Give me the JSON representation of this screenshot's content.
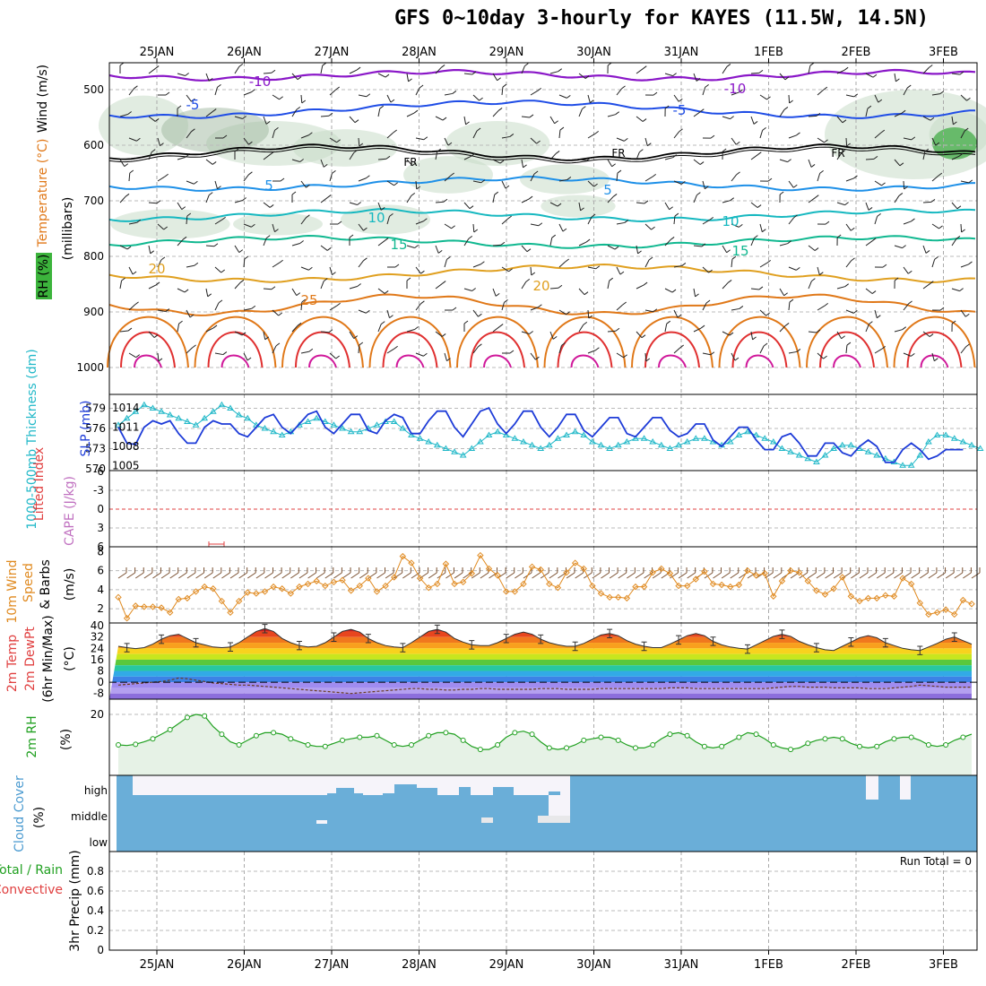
{
  "title": "GFS 0~10day 3-hourly for KAYES (11.5W, 14.5N)",
  "dates": [
    "25JAN",
    "26JAN",
    "27JAN",
    "28JAN",
    "29JAN",
    "30JAN",
    "31JAN",
    "1FEB",
    "2FEB",
    "3FEB"
  ],
  "panels": {
    "upper": {
      "ylabel_wind": "Wind (m/s)",
      "ylabel_temp": "Temperature (°C)",
      "ylabel_rh": "RH (%)",
      "ylabel_mb": "(millibars)",
      "ticks": [
        "500",
        "600",
        "700",
        "800",
        "900",
        "1000"
      ],
      "freezing_label": "FR",
      "colors": {
        "m10": "#8a17c8",
        "m5": "#1f4de6",
        "zero": "#000000",
        "p5": "#1e90e8",
        "p10": "#16b8c0",
        "p15": "#10b890",
        "p20": "#e0a020",
        "p25": "#e07818",
        "p30": "#e03030",
        "rh": "#c8dcc8"
      }
    },
    "thickness": {
      "ylabel_left": "1000-500mb Thickness (dm)",
      "ylabel_right": "SLP (mb)",
      "ticks_left": [
        "579",
        "576",
        "573",
        "570"
      ],
      "ticks_right": [
        "1014",
        "1011",
        "1008",
        "1005"
      ],
      "thickness_color": "#20b8c8",
      "slp_color": "#1e3cd8"
    },
    "cape": {
      "ylabel_left": "Lifted Index",
      "ylabel_right": "CAPE (J/kg)",
      "ticks": [
        "-6",
        "-3",
        "0",
        "3",
        "6"
      ]
    },
    "wind10m": {
      "ylabel_1": "10m Wind",
      "ylabel_2": "Speed",
      "ylabel_3": "& Barbs",
      "ylabel_4": "(m/s)",
      "ticks": [
        "8",
        "6",
        "4",
        "2"
      ],
      "color": "#e08a20"
    },
    "temp2m": {
      "ylabel_1": "2m Temp",
      "ylabel_2": "2m DewPt",
      "ylabel_3": "(6hr Min/Max)",
      "ylabel_4": "(°C)",
      "ticks": [
        "40",
        "32",
        "24",
        "16",
        "8",
        "0",
        "-8"
      ]
    },
    "rh2m": {
      "ylabel_1": "2m RH",
      "ylabel_2": "(%)",
      "ticks": [
        "20"
      ],
      "color": "#20a020"
    },
    "cloud": {
      "ylabel_1": "Cloud Cover",
      "ylabel_2": "(%)",
      "ticks": [
        "high",
        "middle",
        "low"
      ],
      "color": "#6aaed8"
    },
    "precip": {
      "ylabel_1": "Total / Rain",
      "ylabel_2": "Convective",
      "ylabel_3": "3hr Precip (mm)",
      "ticks": [
        "0.8",
        "0.6",
        "0.4",
        "0.2",
        "0"
      ],
      "run_total": "Run Total = 0"
    }
  },
  "chart_data": [
    {
      "type": "line",
      "title": "1000-500mb Thickness (dm) and SLP (mb)",
      "x_step_hours": 3,
      "series": [
        {
          "name": "1000-500mb Thickness (dm)",
          "axis": "left",
          "range": [
            570,
            580
          ],
          "values": [
            576.5,
            577.5,
            578.5,
            579.5,
            579,
            578.5,
            578,
            577.5,
            577,
            576.5,
            577.5,
            578.5,
            579.5,
            579,
            578,
            577.5,
            576.5,
            576,
            575.5,
            575,
            575.5,
            576.5,
            577,
            577.5,
            577,
            576.5,
            576,
            575.5,
            575.5,
            576,
            576.5,
            577,
            577,
            576,
            575,
            574.5,
            574,
            573.5,
            573,
            572.5,
            572,
            573,
            574,
            575,
            575.5,
            575,
            574.5,
            574,
            573.5,
            573,
            573.5,
            574.5,
            575,
            575.5,
            575,
            574,
            573.5,
            573,
            573.5,
            574,
            574.5,
            574.5,
            574,
            573.5,
            573,
            573.5,
            574,
            574.5,
            574.5,
            574,
            573.5,
            574,
            575,
            575.5,
            575,
            574.5,
            574,
            573,
            572.5,
            572,
            571.5,
            571,
            572,
            573,
            573.5,
            573.5,
            573,
            572.5,
            572,
            571.5,
            571,
            570.5,
            570.5,
            572,
            574,
            575,
            575,
            574.5,
            574,
            573.5,
            573
          ]
        },
        {
          "name": "SLP (mb)",
          "axis": "right",
          "range": [
            1004.5,
            1015
          ],
          "values": [
            1011,
            1008.5,
            1008.3,
            1011,
            1012,
            1011.5,
            1012,
            1010,
            1008.5,
            1008.5,
            1011,
            1012,
            1011.5,
            1011.5,
            1010,
            1009.5,
            1011,
            1012.5,
            1013,
            1011,
            1010,
            1011.5,
            1013,
            1013.5,
            1011,
            1010,
            1011.5,
            1013,
            1013,
            1010.5,
            1010,
            1012,
            1013,
            1012.5,
            1010,
            1010,
            1012,
            1013.5,
            1013.5,
            1011,
            1009.5,
            1011.5,
            1013.5,
            1014,
            1011.5,
            1010,
            1011.5,
            1013.5,
            1013.5,
            1011,
            1009.5,
            1011,
            1013,
            1013,
            1010.5,
            1009.5,
            1011,
            1012.5,
            1012.5,
            1010,
            1009.5,
            1011,
            1012.5,
            1012.5,
            1010.5,
            1009.5,
            1010,
            1011.5,
            1011.5,
            1009,
            1008,
            1009.5,
            1011,
            1011,
            1009,
            1007.5,
            1007.5,
            1009.5,
            1010,
            1008.5,
            1006.5,
            1006.5,
            1008.5,
            1008.5,
            1007,
            1006.5,
            1008,
            1009,
            1008,
            1005.5,
            1005.5,
            1007.5,
            1008.5,
            1007.5,
            1006,
            1006.5,
            1007.5,
            1007.5,
            1007.5
          ]
        }
      ]
    },
    {
      "type": "line",
      "title": "10m Wind Speed (m/s)",
      "ylim": [
        0.5,
        8.5
      ],
      "series": [
        {
          "name": "10m Wind Speed",
          "values": [
            3.2,
            1,
            2.3,
            2.2,
            2.2,
            2.1,
            1.6,
            3,
            3.1,
            3.8,
            4.3,
            4.1,
            2.8,
            1.6,
            2.8,
            3.7,
            3.6,
            3.8,
            4.3,
            4.1,
            3.6,
            4.3,
            4.6,
            4.9,
            4.4,
            4.8,
            5,
            3.9,
            4.4,
            5.2,
            3.8,
            4.4,
            5.3,
            7.5,
            6.8,
            5.2,
            4.2,
            4.6,
            6.7,
            4.6,
            4.8,
            5.7,
            7.6,
            6.2,
            5.5,
            3.8,
            3.8,
            4.6,
            6.4,
            6.1,
            4.6,
            4.2,
            5.8,
            6.8,
            6.2,
            4.4,
            3.6,
            3.2,
            3.2,
            3.1,
            4.3,
            4.3,
            5.8,
            6.2,
            5.7,
            4.4,
            4.4,
            5.1,
            5.9,
            4.6,
            4.5,
            4.3,
            4.5,
            6,
            5.5,
            5.7,
            3.3,
            4.9,
            6,
            5.8,
            4.9,
            3.9,
            3.5,
            4.1,
            5.3,
            3.3,
            2.8,
            3.1,
            3.1,
            3.4,
            3.3,
            5.2,
            4.6,
            2.6,
            1.4,
            1.6,
            1.9,
            1.4,
            2.9,
            2.5
          ]
        }
      ]
    },
    {
      "type": "area",
      "title": "2m Temp (°C)",
      "ylim": [
        -12,
        42
      ],
      "series": [
        {
          "name": "2m Temp",
          "values": [
            25.5,
            24.5,
            23.8,
            24.5,
            27,
            30.5,
            33,
            34,
            31,
            28,
            26.5,
            25,
            24.5,
            25,
            28,
            32,
            36,
            38,
            36,
            31,
            28,
            26,
            25,
            25.5,
            28,
            32,
            36,
            37.5,
            35.5,
            31,
            28,
            26,
            25,
            24.5,
            28,
            32,
            36,
            37.5,
            35.5,
            31,
            28.5,
            26.5,
            26,
            26,
            28,
            31,
            34,
            35.5,
            34,
            30.5,
            28,
            26.5,
            25.5,
            25.5,
            27.5,
            30.5,
            33.5,
            34.5,
            33,
            29.5,
            27,
            25.5,
            24.5,
            24.5,
            27,
            30,
            33,
            34.5,
            33,
            29,
            26.5,
            25,
            24,
            23.5,
            26.5,
            29.5,
            32.5,
            34,
            32.5,
            29,
            26.5,
            24.5,
            23,
            22.5,
            25.5,
            28.5,
            31.5,
            33,
            31.5,
            28,
            26,
            24,
            23,
            22.5,
            25,
            27.5,
            30.5,
            32,
            29.5,
            27
          ]
        },
        {
          "name": "2m DewPt",
          "values": [
            -2,
            -1.5,
            -1,
            -0.5,
            0,
            0.5,
            1.5,
            3,
            2.5,
            1.5,
            0.5,
            -0.5,
            -1,
            -1.5,
            -2,
            -2,
            -2.5,
            -3,
            -3.5,
            -4,
            -4.5,
            -5,
            -5.5,
            -6,
            -6.5,
            -7,
            -7.5,
            -8,
            -7.5,
            -7,
            -6.5,
            -6,
            -5.5,
            -5,
            -4.5,
            -4.5,
            -5,
            -5,
            -5.5,
            -5.5,
            -5,
            -5,
            -4.5,
            -4.5,
            -5,
            -5,
            -5,
            -5,
            -5,
            -4.5,
            -4.5,
            -4.5,
            -5,
            -5,
            -5,
            -5,
            -4.5,
            -4.5,
            -4.5,
            -4.5,
            -4.5,
            -4.5,
            -4.5,
            -4.5,
            -4,
            -4,
            -4,
            -4.5,
            -4.5,
            -4.5,
            -4.5,
            -4.5,
            -4.5,
            -4.5,
            -4.5,
            -4.5,
            -4,
            -3.5,
            -3,
            -3,
            -3.5,
            -3.5,
            -3.5,
            -4,
            -4,
            -4,
            -4,
            -4.5,
            -4.5,
            -4.5,
            -4,
            -3.5,
            -3,
            -2,
            -2.5,
            -3,
            -3.5,
            -3.5,
            -3.5,
            -3.5
          ]
        }
      ]
    },
    {
      "type": "line",
      "title": "2m RH (%)",
      "ylim": [
        0,
        25
      ],
      "series": [
        {
          "name": "2m RH",
          "values": [
            10,
            9.8,
            10.2,
            11,
            12,
            13.5,
            15,
            17,
            19,
            20,
            19.5,
            16,
            13.5,
            11,
            10,
            11.5,
            13,
            14,
            14,
            13.5,
            12,
            11,
            10,
            9.5,
            9.5,
            10.5,
            11.5,
            12,
            12.5,
            12.5,
            13,
            11.5,
            10,
            9.5,
            10,
            11.5,
            13,
            14,
            14,
            13.5,
            11.5,
            9.5,
            8.5,
            8.5,
            10,
            12.5,
            14,
            14.5,
            13.5,
            11,
            9,
            8.5,
            9,
            10,
            11.5,
            12,
            12.5,
            12.5,
            11.5,
            10,
            9,
            9,
            10,
            12,
            13.5,
            14,
            13,
            11,
            9.5,
            9,
            9.5,
            11,
            12.5,
            14,
            13.5,
            12,
            10,
            9,
            8.5,
            9,
            10.5,
            11.5,
            12,
            12.5,
            12,
            10.5,
            9.5,
            9,
            9.5,
            11,
            12,
            12.5,
            12.5,
            11.5,
            10,
            9.5,
            10,
            11.5,
            12.5,
            13.5
          ]
        }
      ]
    },
    {
      "type": "table",
      "title": "3hr Precip (mm)",
      "ylim": [
        0,
        1
      ],
      "note": "Run Total = 0"
    }
  ]
}
